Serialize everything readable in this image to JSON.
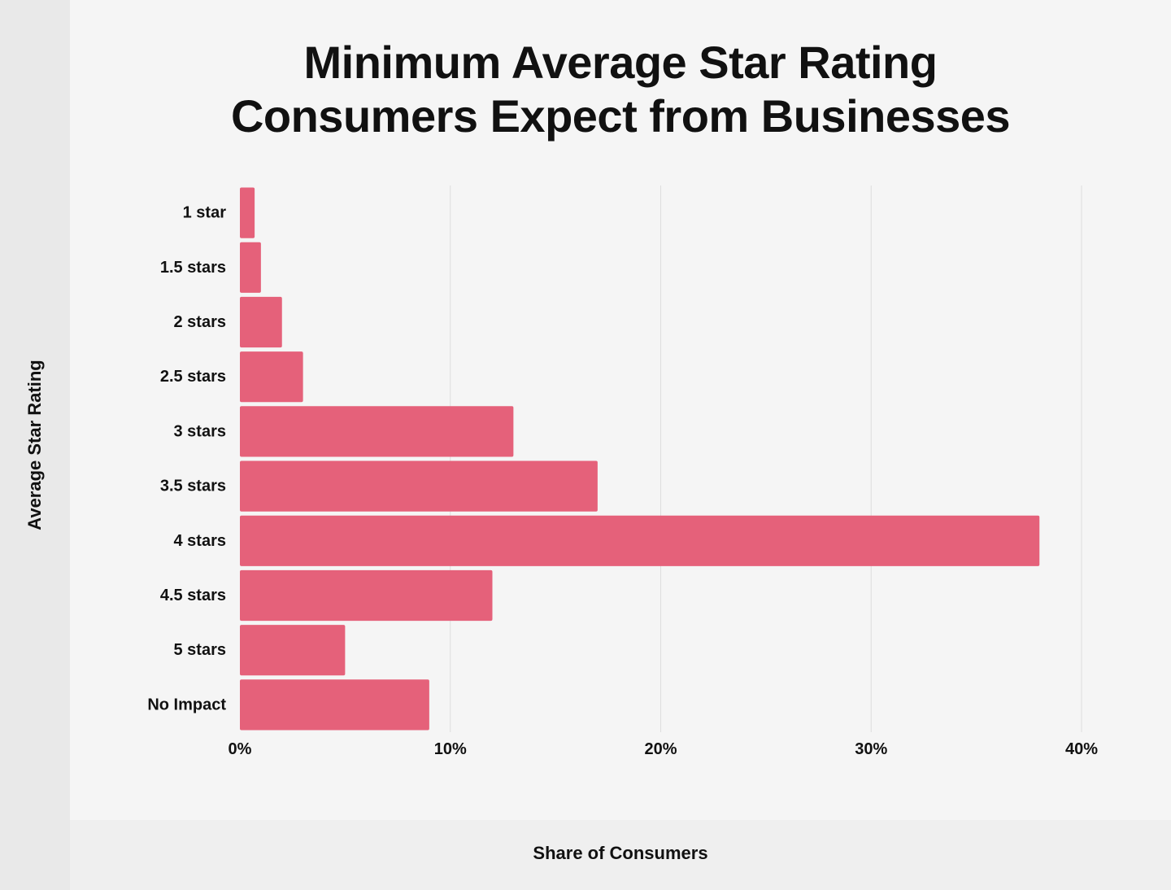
{
  "chart_data": {
    "type": "bar",
    "orientation": "horizontal",
    "title_lines": [
      "Minimum Average Star Rating",
      "Consumers Expect from Businesses"
    ],
    "xlabel": "Share of Consumers",
    "ylabel": "Average Star Rating",
    "categories": [
      "1 star",
      "1.5 stars",
      "2 stars",
      "2.5 stars",
      "3 stars",
      "3.5 stars",
      "4 stars",
      "4.5 stars",
      "5 stars",
      "No Impact"
    ],
    "values": [
      0.7,
      1,
      2,
      3,
      13,
      17,
      38,
      12,
      5,
      9
    ],
    "xlim": [
      0,
      40
    ],
    "xticks": [
      0,
      10,
      20,
      30,
      40
    ],
    "xtick_labels": [
      "0%",
      "10%",
      "20%",
      "30%",
      "40%"
    ],
    "grid": "vertical",
    "bar_color": "#e5617a",
    "grid_color": "#dddddd"
  }
}
